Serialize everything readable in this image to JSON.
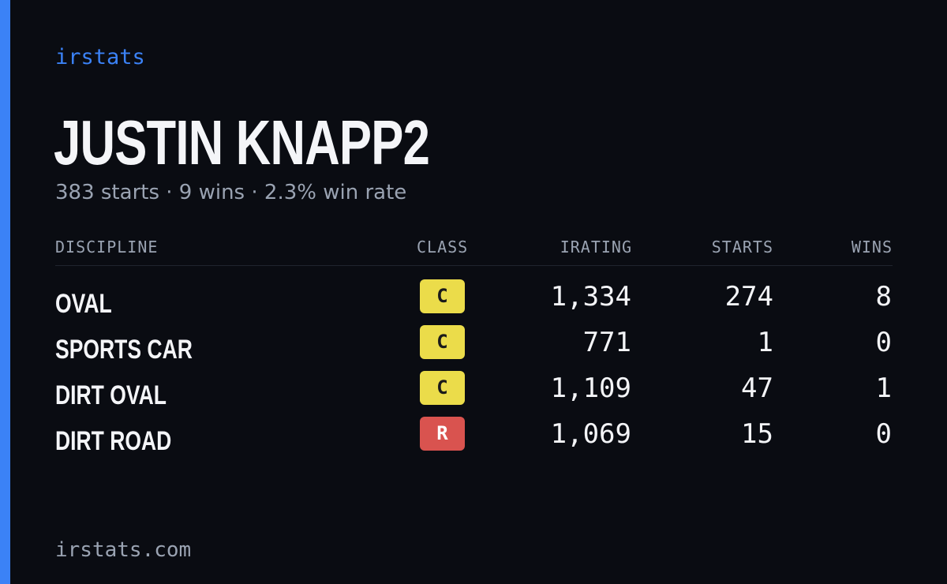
{
  "brand": "irstats",
  "driver": {
    "name": "JUSTIN KNAPP2",
    "summary": "383 starts · 9 wins · 2.3% win rate"
  },
  "table": {
    "headers": {
      "discipline": "DISCIPLINE",
      "class": "CLASS",
      "irating": "IRATING",
      "starts": "STARTS",
      "wins": "WINS"
    },
    "rows": [
      {
        "discipline": "OVAL",
        "class": "C",
        "irating": "1,334",
        "starts": "274",
        "wins": "8"
      },
      {
        "discipline": "SPORTS CAR",
        "class": "C",
        "irating": "771",
        "starts": "1",
        "wins": "0"
      },
      {
        "discipline": "DIRT OVAL",
        "class": "C",
        "irating": "1,109",
        "starts": "47",
        "wins": "1"
      },
      {
        "discipline": "DIRT ROAD",
        "class": "R",
        "irating": "1,069",
        "starts": "15",
        "wins": "0"
      }
    ]
  },
  "footer": "irstats.com",
  "colors": {
    "accent": "#3b82f6",
    "background": "#0a0c12",
    "class_c": "#ebdc4a",
    "class_r": "#d9534f"
  }
}
